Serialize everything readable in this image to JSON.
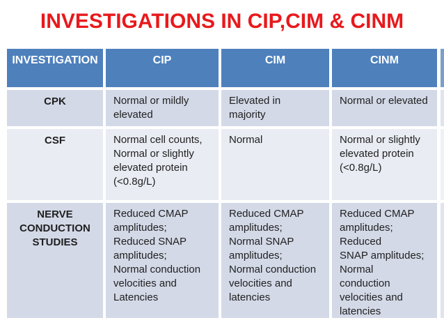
{
  "title": "INVESTIGATIONS IN CIP,CIM & CINM",
  "table": {
    "columns": [
      "INVESTIGATION",
      "CIP",
      "CIM",
      "CINM"
    ],
    "rows": [
      {
        "investigation": "CPK",
        "cip": "Normal or mildly\nelevated",
        "cim": "Elevated in\nmajority",
        "cinm": "Normal or elevated"
      },
      {
        "investigation": "CSF",
        "cip": "Normal cell counts,\nNormal or slightly\nelevated protein\n(<0.8g/L)",
        "cim": "Normal",
        "cinm": "Normal or slightly\nelevated protein\n(<0.8g/L)"
      },
      {
        "investigation": "NERVE\nCONDUCTION\nSTUDIES",
        "cip": "Reduced CMAP\namplitudes;\nReduced SNAP\namplitudes;\nNormal conduction\nvelocities and\nLatencies",
        "cim": "Reduced CMAP\namplitudes;\nNormal SNAP\namplitudes;\nNormal conduction\nvelocities and\nlatencies",
        "cinm": "Reduced CMAP\namplitudes;\nReduced\nSNAP amplitudes;\nNormal\nconduction\nvelocities and\nlatencies"
      }
    ]
  },
  "colors": {
    "title_red": "#e8191c",
    "header_blue": "#4e80bc",
    "band_dark": "#d3d9e7",
    "band_light": "#e9ecf3",
    "header_text": "#ffffff",
    "body_text": "#1f1f1f",
    "gutter": "#ffffff"
  }
}
